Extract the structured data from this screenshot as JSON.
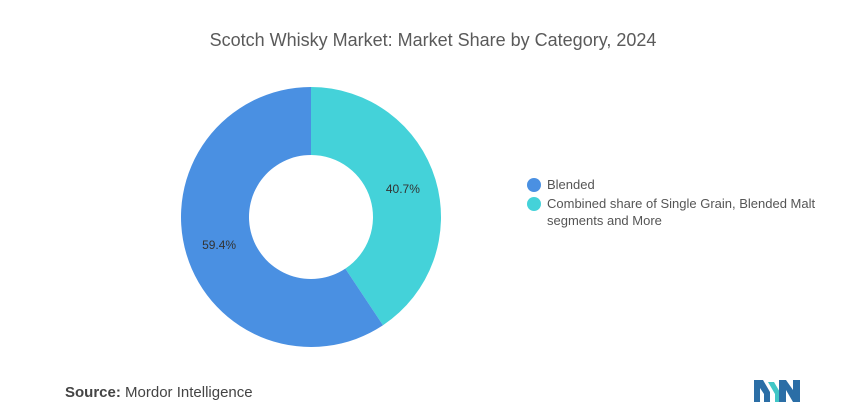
{
  "title": "Scotch Whisky Market: Market Share by Category, 2024",
  "source_label": "Source:",
  "source_value": "Mordor Intelligence",
  "chart_data": {
    "type": "pie",
    "donut": true,
    "start_angle_deg": 0,
    "series": [
      {
        "name": "Combined share of Single Grain, Blended Malt segments and More",
        "value": 40.7,
        "label": "40.7%",
        "color": "#44d2d9"
      },
      {
        "name": "Blended",
        "value": 59.4,
        "label": "59.4%",
        "color": "#4a90e2"
      }
    ],
    "legend": {
      "position": "right",
      "items": [
        {
          "name": "Blended",
          "color": "#4a90e2"
        },
        {
          "name": "Combined share of Single Grain, Blended Malt segments and More",
          "color": "#44d2d9"
        }
      ]
    }
  },
  "logo": {
    "colors": [
      "#2b6ea6",
      "#40c6c6"
    ]
  }
}
